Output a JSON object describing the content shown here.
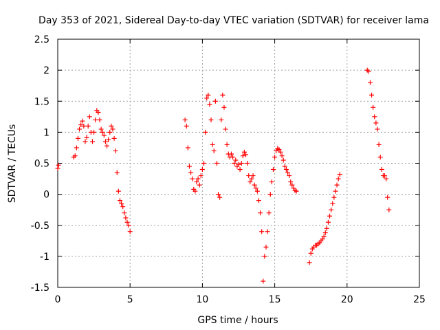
{
  "chart_data": {
    "type": "scatter",
    "title": "Day 353 of 2021, Sidereal Day-to-day VTEC variation (SDTVAR) for receiver lama",
    "xlabel": "GPS time / hours",
    "ylabel": "SDTVAR / TECUs",
    "xlim": [
      0,
      25
    ],
    "ylim": [
      -1.5,
      2.5
    ],
    "grid": true,
    "marker": "+",
    "color": "#ff0000",
    "x_ticks": [
      {
        "v": 0,
        "label": "0"
      },
      {
        "v": 5,
        "label": "5"
      },
      {
        "v": 10,
        "label": "10"
      },
      {
        "v": 15,
        "label": "15"
      },
      {
        "v": 20,
        "label": "20"
      },
      {
        "v": 25,
        "label": "25"
      }
    ],
    "y_ticks": [
      {
        "v": -1.5,
        "label": "-1.5"
      },
      {
        "v": -1,
        "label": "-1"
      },
      {
        "v": -0.5,
        "label": "-0.5"
      },
      {
        "v": 0,
        "label": "0"
      },
      {
        "v": 0.5,
        "label": "0.5"
      },
      {
        "v": 1,
        "label": "1"
      },
      {
        "v": 1.5,
        "label": "1.5"
      },
      {
        "v": 2,
        "label": "2"
      },
      {
        "v": 2.5,
        "label": "2.5"
      }
    ],
    "series": [
      {
        "name": "seg1",
        "points": [
          [
            0.0,
            0.42
          ],
          [
            0.05,
            0.47
          ]
        ]
      },
      {
        "name": "seg2",
        "points": [
          [
            1.1,
            0.6
          ],
          [
            1.2,
            0.62
          ],
          [
            1.3,
            0.75
          ],
          [
            1.4,
            0.9
          ],
          [
            1.5,
            1.05
          ],
          [
            1.6,
            1.12
          ],
          [
            1.7,
            1.18
          ],
          [
            1.8,
            1.1
          ],
          [
            1.9,
            0.85
          ],
          [
            2.0,
            0.92
          ],
          [
            2.1,
            1.1
          ],
          [
            2.2,
            1.25
          ],
          [
            2.3,
            1.0
          ],
          [
            2.4,
            0.85
          ],
          [
            2.5,
            1.0
          ],
          [
            2.6,
            1.2
          ],
          [
            2.7,
            1.35
          ],
          [
            2.8,
            1.32
          ],
          [
            2.9,
            1.2
          ],
          [
            3.0,
            1.05
          ],
          [
            3.1,
            1.0
          ],
          [
            3.2,
            0.95
          ],
          [
            3.3,
            0.85
          ],
          [
            3.4,
            0.78
          ],
          [
            3.5,
            0.88
          ],
          [
            3.6,
            1.0
          ],
          [
            3.7,
            1.1
          ],
          [
            3.8,
            1.05
          ],
          [
            3.9,
            0.9
          ],
          [
            4.0,
            0.7
          ],
          [
            4.1,
            0.35
          ],
          [
            4.2,
            0.05
          ],
          [
            4.3,
            -0.1
          ],
          [
            4.4,
            -0.15
          ],
          [
            4.5,
            -0.2
          ],
          [
            4.6,
            -0.3
          ],
          [
            4.7,
            -0.38
          ],
          [
            4.8,
            -0.45
          ],
          [
            4.9,
            -0.5
          ],
          [
            5.0,
            -0.6
          ]
        ]
      },
      {
        "name": "seg3",
        "points": [
          [
            8.8,
            1.2
          ],
          [
            8.9,
            1.1
          ],
          [
            9.0,
            0.75
          ],
          [
            9.1,
            0.45
          ],
          [
            9.2,
            0.35
          ],
          [
            9.3,
            0.25
          ],
          [
            9.4,
            0.08
          ],
          [
            9.5,
            0.05
          ],
          [
            9.6,
            0.2
          ],
          [
            9.7,
            0.25
          ],
          [
            9.8,
            0.15
          ],
          [
            9.9,
            0.3
          ],
          [
            10.0,
            0.4
          ],
          [
            10.1,
            0.5
          ],
          [
            10.2,
            1.0
          ],
          [
            10.3,
            1.55
          ],
          [
            10.4,
            1.6
          ],
          [
            10.5,
            1.45
          ],
          [
            10.6,
            1.2
          ],
          [
            10.7,
            0.8
          ],
          [
            10.8,
            0.7
          ],
          [
            10.9,
            1.5
          ],
          [
            11.0,
            0.5
          ],
          [
            11.1,
            0.0
          ],
          [
            11.2,
            -0.05
          ],
          [
            11.3,
            1.2
          ],
          [
            11.4,
            1.6
          ],
          [
            11.5,
            1.4
          ],
          [
            11.6,
            1.05
          ],
          [
            11.7,
            0.8
          ],
          [
            11.8,
            0.65
          ],
          [
            11.9,
            0.6
          ],
          [
            12.0,
            0.65
          ],
          [
            12.1,
            0.6
          ],
          [
            12.2,
            0.5
          ],
          [
            12.3,
            0.55
          ],
          [
            12.4,
            0.45
          ],
          [
            12.5,
            0.48
          ],
          [
            12.6,
            0.4
          ],
          [
            12.7,
            0.5
          ],
          [
            12.8,
            0.62
          ],
          [
            12.9,
            0.68
          ],
          [
            13.0,
            0.64
          ],
          [
            13.1,
            0.5
          ],
          [
            13.2,
            0.3
          ],
          [
            13.3,
            0.2
          ],
          [
            13.4,
            0.25
          ],
          [
            13.5,
            0.3
          ],
          [
            13.6,
            0.15
          ],
          [
            13.7,
            0.1
          ],
          [
            13.8,
            0.05
          ],
          [
            13.9,
            -0.1
          ],
          [
            14.0,
            -0.3
          ],
          [
            14.1,
            -0.6
          ],
          [
            14.2,
            -1.4
          ],
          [
            14.3,
            -1.0
          ],
          [
            14.4,
            -0.85
          ],
          [
            14.5,
            -0.6
          ],
          [
            14.6,
            -0.3
          ],
          [
            14.7,
            0.0
          ],
          [
            14.8,
            0.2
          ],
          [
            14.9,
            0.4
          ],
          [
            15.0,
            0.6
          ],
          [
            15.1,
            0.7
          ],
          [
            15.2,
            0.74
          ],
          [
            15.3,
            0.72
          ],
          [
            15.4,
            0.68
          ],
          [
            15.5,
            0.62
          ],
          [
            15.6,
            0.55
          ],
          [
            15.7,
            0.45
          ],
          [
            15.8,
            0.4
          ],
          [
            15.9,
            0.35
          ],
          [
            16.0,
            0.3
          ],
          [
            16.1,
            0.2
          ],
          [
            16.2,
            0.15
          ],
          [
            16.3,
            0.1
          ],
          [
            16.4,
            0.06
          ],
          [
            16.5,
            0.05
          ]
        ]
      },
      {
        "name": "seg4",
        "points": [
          [
            17.4,
            -1.1
          ],
          [
            17.5,
            -0.95
          ],
          [
            17.6,
            -0.88
          ],
          [
            17.7,
            -0.85
          ],
          [
            17.8,
            -0.82
          ],
          [
            17.9,
            -0.82
          ],
          [
            18.0,
            -0.8
          ],
          [
            18.1,
            -0.78
          ],
          [
            18.2,
            -0.75
          ],
          [
            18.3,
            -0.72
          ],
          [
            18.4,
            -0.68
          ],
          [
            18.5,
            -0.62
          ],
          [
            18.6,
            -0.55
          ],
          [
            18.7,
            -0.45
          ],
          [
            18.8,
            -0.35
          ],
          [
            18.9,
            -0.25
          ],
          [
            19.0,
            -0.15
          ],
          [
            19.1,
            -0.05
          ],
          [
            19.2,
            0.05
          ],
          [
            19.3,
            0.15
          ],
          [
            19.4,
            0.25
          ],
          [
            19.5,
            0.32
          ]
        ]
      },
      {
        "name": "seg5",
        "points": [
          [
            21.4,
            2.0
          ],
          [
            21.5,
            1.98
          ],
          [
            21.6,
            1.8
          ],
          [
            21.7,
            1.6
          ],
          [
            21.8,
            1.4
          ],
          [
            21.9,
            1.25
          ],
          [
            22.0,
            1.15
          ],
          [
            22.1,
            1.05
          ],
          [
            22.2,
            0.8
          ],
          [
            22.3,
            0.6
          ],
          [
            22.4,
            0.4
          ],
          [
            22.5,
            0.3
          ],
          [
            22.6,
            0.3
          ],
          [
            22.7,
            0.25
          ],
          [
            22.8,
            -0.05
          ],
          [
            22.9,
            -0.25
          ]
        ]
      }
    ]
  }
}
